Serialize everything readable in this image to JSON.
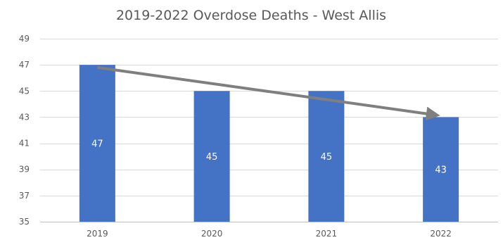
{
  "chart_data": {
    "type": "bar",
    "title": "2019-2022 Overdose Deaths - West Allis",
    "categories": [
      "2019",
      "2020",
      "2021",
      "2022"
    ],
    "values": [
      47,
      45,
      45,
      43
    ],
    "data_labels": [
      "47",
      "45",
      "45",
      "43"
    ],
    "xlabel": "",
    "ylabel": "",
    "ylim": [
      35,
      49
    ],
    "yticks": [
      35,
      37,
      39,
      41,
      43,
      45,
      47,
      49
    ],
    "grid": true,
    "legend": "none",
    "bar_color": "#4472C4",
    "trend_arrow": {
      "color": "#7F7F7F",
      "from": {
        "x": "2019",
        "y": 46.8
      },
      "to": {
        "x": "2022",
        "y": 43.2
      }
    }
  }
}
